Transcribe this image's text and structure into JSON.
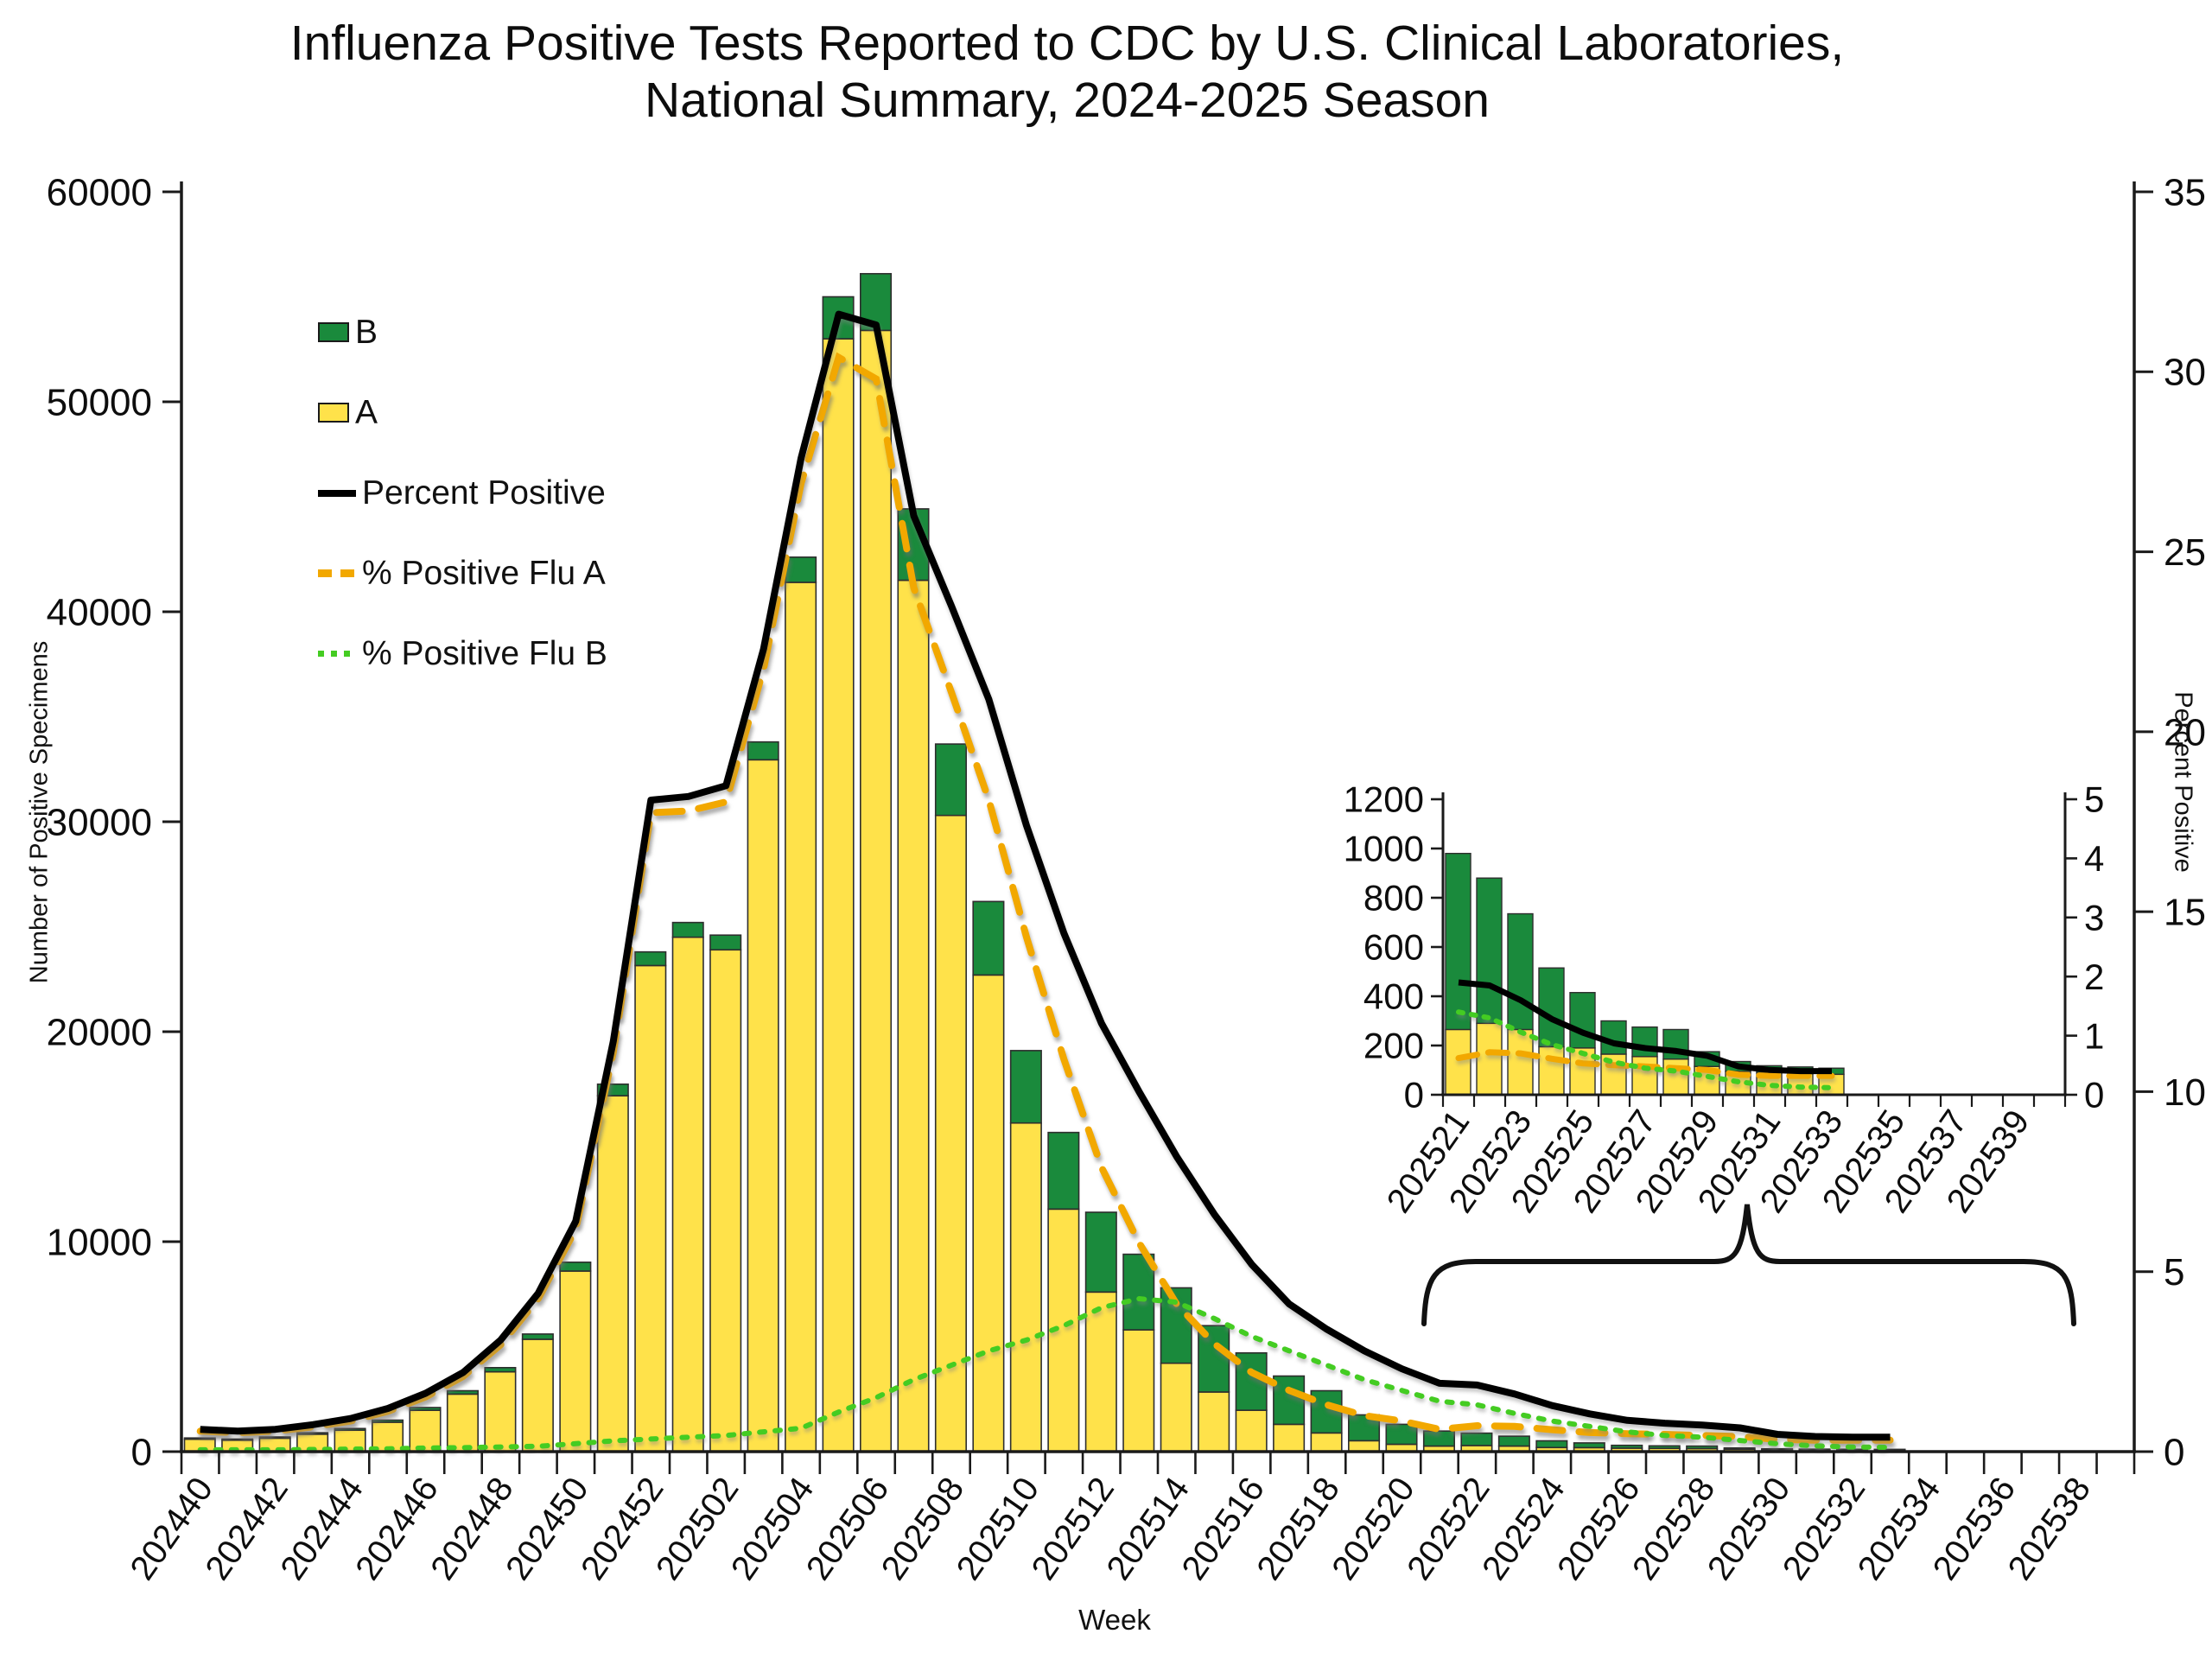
{
  "title": {
    "line1": "Influenza Positive Tests Reported to CDC by U.S. Clinical Laboratories,",
    "line2": "National Summary, 2024-2025 Season"
  },
  "axes": {
    "y_left_title": "Number of Positive Specimens",
    "y_right_title": "Percent Positive",
    "x_title": "Week",
    "y_left_ticks": [
      "0",
      "10000",
      "20000",
      "30000",
      "40000",
      "50000",
      "60000"
    ],
    "y_right_ticks": [
      "0",
      "5",
      "10",
      "15",
      "20",
      "25",
      "30",
      "35"
    ],
    "y_left_max": 60000,
    "y_right_max": 35,
    "x_labels": [
      "202440",
      "202442",
      "202444",
      "202446",
      "202448",
      "202450",
      "202452",
      "202502",
      "202504",
      "202506",
      "202508",
      "202510",
      "202512",
      "202514",
      "202516",
      "202518",
      "202520",
      "202522",
      "202524",
      "202526",
      "202528",
      "202530",
      "202532",
      "202534",
      "202536",
      "202538"
    ]
  },
  "legend": {
    "items": [
      {
        "label": "B",
        "kind": "box",
        "color": "#1A8A3C"
      },
      {
        "label": "A",
        "kind": "box",
        "color": "#FFE24A"
      },
      {
        "label": "Percent Positive",
        "kind": "solid-line",
        "color": "#000000"
      },
      {
        "label": "% Positive Flu A",
        "kind": "dashed-line",
        "color": "#F2A800"
      },
      {
        "label": "% Positive Flu B",
        "kind": "dotted-line",
        "color": "#44CC22"
      }
    ]
  },
  "colors": {
    "bar_b": "#1A8A3C",
    "bar_a": "#FFE24A",
    "bar_border": "#2e2e2e",
    "line_percent_positive": "#000000",
    "line_flu_a": "#F2A800",
    "line_flu_b": "#44CC22",
    "axis": "#1a1a1a",
    "background": "#ffffff"
  },
  "chart_data": {
    "type": "bar",
    "subtype": "stacked-bars-with-percent-lines",
    "title": "Influenza Positive Tests Reported to CDC by U.S. Clinical Laboratories, National Summary, 2024-2025 Season",
    "xlabel": "Week",
    "ylabel_left": "Number of Positive Specimens",
    "ylabel_right": "Percent Positive",
    "ylim_left": [
      0,
      60000
    ],
    "ylim_right": [
      0,
      35
    ],
    "grid": false,
    "legend_position": "upper-left-inside",
    "x_slot_weeks_start": "202440",
    "x_slot_weeks_end": "202539",
    "series_legend": [
      "B",
      "A",
      "Percent Positive",
      "% Positive Flu A",
      "% Positive Flu B"
    ],
    "weeks": [
      {
        "w": "202440",
        "a": 590,
        "b": 60,
        "pct": 0.62,
        "pa": 0.57,
        "pb": 0.05
      },
      {
        "w": "202441",
        "a": 545,
        "b": 55,
        "pct": 0.57,
        "pa": 0.52,
        "pb": 0.05
      },
      {
        "w": "202442",
        "a": 640,
        "b": 60,
        "pct": 0.62,
        "pa": 0.57,
        "pb": 0.05
      },
      {
        "w": "202443",
        "a": 830,
        "b": 70,
        "pct": 0.75,
        "pa": 0.69,
        "pb": 0.06
      },
      {
        "w": "202444",
        "a": 1020,
        "b": 80,
        "pct": 0.92,
        "pa": 0.85,
        "pb": 0.07
      },
      {
        "w": "202445",
        "a": 1400,
        "b": 100,
        "pct": 1.2,
        "pa": 1.12,
        "pb": 0.08
      },
      {
        "w": "202446",
        "a": 1970,
        "b": 130,
        "pct": 1.62,
        "pa": 1.52,
        "pb": 0.1
      },
      {
        "w": "202447",
        "a": 2740,
        "b": 160,
        "pct": 2.2,
        "pa": 2.09,
        "pb": 0.11
      },
      {
        "w": "202448",
        "a": 3800,
        "b": 200,
        "pct": 3.1,
        "pa": 2.97,
        "pb": 0.13
      },
      {
        "w": "202449",
        "a": 5350,
        "b": 250,
        "pct": 4.4,
        "pa": 4.25,
        "pb": 0.15
      },
      {
        "w": "202450",
        "a": 8600,
        "b": 420,
        "pct": 6.4,
        "pa": 6.18,
        "pb": 0.22
      },
      {
        "w": "202451",
        "a": 16950,
        "b": 550,
        "pct": 11.4,
        "pa": 11.1,
        "pb": 0.3
      },
      {
        "w": "202452",
        "a": 23150,
        "b": 650,
        "pct": 18.1,
        "pa": 17.75,
        "pb": 0.35
      },
      {
        "w": "202501",
        "a": 24500,
        "b": 700,
        "pct": 18.2,
        "pa": 17.8,
        "pb": 0.4
      },
      {
        "w": "202502",
        "a": 23900,
        "b": 700,
        "pct": 18.5,
        "pa": 18.05,
        "pb": 0.45
      },
      {
        "w": "202503",
        "a": 32950,
        "b": 850,
        "pct": 22.3,
        "pa": 21.75,
        "pb": 0.55
      },
      {
        "w": "202504",
        "a": 41400,
        "b": 1200,
        "pct": 27.6,
        "pa": 26.9,
        "pb": 0.65
      },
      {
        "w": "202505",
        "a": 53000,
        "b": 2000,
        "pct": 31.6,
        "pa": 30.4,
        "pb": 1.1
      },
      {
        "w": "202506",
        "a": 53400,
        "b": 2700,
        "pct": 31.3,
        "pa": 29.8,
        "pb": 1.5
      },
      {
        "w": "202507",
        "a": 41500,
        "b": 3400,
        "pct": 26.0,
        "pa": 24.0,
        "pb": 2.0
      },
      {
        "w": "202508",
        "a": 30300,
        "b": 3400,
        "pct": 23.5,
        "pa": 21.1,
        "pb": 2.4
      },
      {
        "w": "202509",
        "a": 22700,
        "b": 3500,
        "pct": 20.9,
        "pa": 18.1,
        "pb": 2.8
      },
      {
        "w": "202510",
        "a": 15650,
        "b": 3450,
        "pct": 17.4,
        "pa": 14.3,
        "pb": 3.1
      },
      {
        "w": "202511",
        "a": 11550,
        "b": 3650,
        "pct": 14.4,
        "pa": 10.9,
        "pb": 3.5
      },
      {
        "w": "202512",
        "a": 7600,
        "b": 3800,
        "pct": 11.9,
        "pa": 7.9,
        "pb": 4.0
      },
      {
        "w": "202513",
        "a": 5800,
        "b": 3600,
        "pct": 10.0,
        "pa": 5.8,
        "pb": 4.25
      },
      {
        "w": "202514",
        "a": 4210,
        "b": 3590,
        "pct": 8.2,
        "pa": 4.1,
        "pb": 4.15
      },
      {
        "w": "202515",
        "a": 2840,
        "b": 3160,
        "pct": 6.6,
        "pa": 3.0,
        "pb": 3.7
      },
      {
        "w": "202516",
        "a": 1970,
        "b": 2730,
        "pct": 5.2,
        "pa": 2.2,
        "pb": 3.2
      },
      {
        "w": "202517",
        "a": 1300,
        "b": 2300,
        "pct": 4.1,
        "pa": 1.7,
        "pb": 2.8
      },
      {
        "w": "202518",
        "a": 890,
        "b": 2010,
        "pct": 3.4,
        "pa": 1.3,
        "pb": 2.4
      },
      {
        "w": "202519",
        "a": 520,
        "b": 1230,
        "pct": 2.8,
        "pa": 1.0,
        "pb": 2.0
      },
      {
        "w": "202520",
        "a": 350,
        "b": 950,
        "pct": 2.3,
        "pa": 0.85,
        "pb": 1.7
      },
      {
        "w": "202521",
        "a": 265,
        "b": 715,
        "pct": 1.9,
        "pa": 0.62,
        "pb": 1.4
      },
      {
        "w": "202522",
        "a": 290,
        "b": 590,
        "pct": 1.85,
        "pa": 0.72,
        "pb": 1.3
      },
      {
        "w": "202523",
        "a": 265,
        "b": 470,
        "pct": 1.6,
        "pa": 0.7,
        "pb": 1.06
      },
      {
        "w": "202524",
        "a": 195,
        "b": 320,
        "pct": 1.28,
        "pa": 0.61,
        "pb": 0.85
      },
      {
        "w": "202525",
        "a": 190,
        "b": 225,
        "pct": 1.05,
        "pa": 0.53,
        "pb": 0.7
      },
      {
        "w": "202526",
        "a": 165,
        "b": 135,
        "pct": 0.87,
        "pa": 0.5,
        "pb": 0.55
      },
      {
        "w": "202527",
        "a": 155,
        "b": 120,
        "pct": 0.79,
        "pa": 0.48,
        "pb": 0.45
      },
      {
        "w": "202528",
        "a": 145,
        "b": 120,
        "pct": 0.74,
        "pa": 0.45,
        "pb": 0.4
      },
      {
        "w": "202529",
        "a": 115,
        "b": 60,
        "pct": 0.66,
        "pa": 0.42,
        "pb": 0.31
      },
      {
        "w": "202530",
        "a": 95,
        "b": 40,
        "pct": 0.48,
        "pa": 0.34,
        "pb": 0.22
      },
      {
        "w": "202531",
        "a": 90,
        "b": 28,
        "pct": 0.42,
        "pa": 0.32,
        "pb": 0.16
      },
      {
        "w": "202532",
        "a": 86,
        "b": 27,
        "pct": 0.4,
        "pa": 0.32,
        "pb": 0.13
      },
      {
        "w": "202533",
        "a": 83,
        "b": 25,
        "pct": 0.4,
        "pa": 0.32,
        "pb": 0.12
      }
    ],
    "inset": {
      "description": "Zoomed view of weeks 202521 onward (indicated by curly brace on main chart)",
      "first_week": "202521",
      "ylim_left": [
        0,
        1200
      ],
      "ylim_right": [
        0,
        5
      ],
      "y_left_ticks": [
        "0",
        "200",
        "400",
        "600",
        "800",
        "1000",
        "1200"
      ],
      "y_right_ticks": [
        "0",
        "1",
        "2",
        "3",
        "4",
        "5"
      ],
      "x_labels": [
        "202521",
        "202523",
        "202525",
        "202527",
        "202529",
        "202531",
        "202533",
        "202535",
        "202537",
        "202539"
      ]
    }
  }
}
